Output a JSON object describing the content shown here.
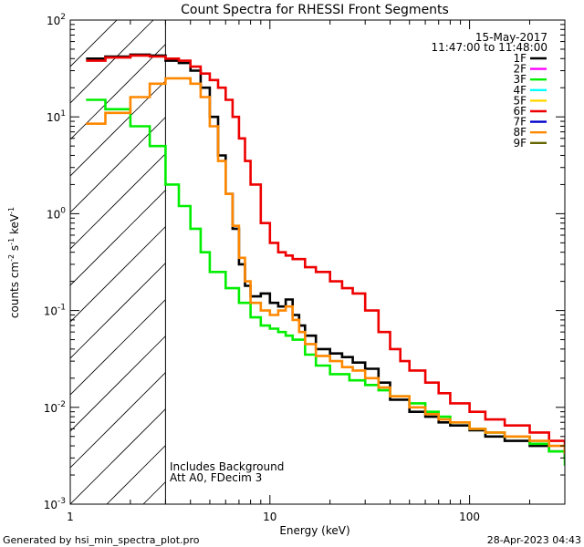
{
  "chart_data": {
    "type": "line",
    "title": "Count Spectra for RHESSI Front Segments",
    "xlabel": "Energy (keV)",
    "ylabel_parts": [
      "counts cm",
      "-2",
      " s",
      "-1",
      " keV",
      "-1"
    ],
    "x_scale": "log",
    "y_scale": "log",
    "xlim": [
      1,
      300
    ],
    "ylim": [
      0.001,
      100
    ],
    "x_ticks": [
      {
        "value": 1,
        "label": "1"
      },
      {
        "value": 10,
        "label": "10"
      },
      {
        "value": 100,
        "label": "100"
      }
    ],
    "y_ticks": [
      {
        "value": 0.001,
        "base": "10",
        "exp": "-3"
      },
      {
        "value": 0.01,
        "base": "10",
        "exp": "-2"
      },
      {
        "value": 0.1,
        "base": "10",
        "exp": "-1"
      },
      {
        "value": 1,
        "base": "10",
        "exp": "0"
      },
      {
        "value": 10,
        "base": "10",
        "exp": "1"
      },
      {
        "value": 100,
        "base": "10",
        "exp": "2"
      }
    ],
    "attenuator_boundary_keV": 3,
    "date": "15-May-2017",
    "time_range": "11:47:00 to 11:48:00",
    "annotations": [
      "Includes Background",
      "Att A0, FDecim 3"
    ],
    "legend": [
      {
        "label": "1F",
        "color": "#000000"
      },
      {
        "label": "2F",
        "color": "#ff00ff"
      },
      {
        "label": "3F",
        "color": "#00ee00"
      },
      {
        "label": "4F",
        "color": "#00ffff"
      },
      {
        "label": "5F",
        "color": "#ffd700"
      },
      {
        "label": "6F",
        "color": "#ee0000"
      },
      {
        "label": "7F",
        "color": "#0000cc"
      },
      {
        "label": "8F",
        "color": "#ff8800"
      },
      {
        "label": "9F",
        "color": "#666600"
      }
    ],
    "series": [
      {
        "name": "1F",
        "color": "#000000",
        "points": [
          [
            1.2,
            40
          ],
          [
            1.5,
            42
          ],
          [
            2,
            44
          ],
          [
            2.5,
            43
          ],
          [
            3,
            38
          ],
          [
            3.5,
            36
          ],
          [
            4,
            30
          ],
          [
            4.5,
            20
          ],
          [
            5,
            10
          ],
          [
            5.5,
            4
          ],
          [
            6,
            1.6
          ],
          [
            6.5,
            0.7
          ],
          [
            7,
            0.3
          ],
          [
            7.5,
            0.18
          ],
          [
            8,
            0.14
          ],
          [
            9,
            0.15
          ],
          [
            10,
            0.12
          ],
          [
            11,
            0.11
          ],
          [
            12,
            0.13
          ],
          [
            13,
            0.09
          ],
          [
            14,
            0.07
          ],
          [
            15,
            0.055
          ],
          [
            17,
            0.04
          ],
          [
            20,
            0.036
          ],
          [
            23,
            0.033
          ],
          [
            26,
            0.029
          ],
          [
            30,
            0.025
          ],
          [
            35,
            0.018
          ],
          [
            40,
            0.012
          ],
          [
            50,
            0.009
          ],
          [
            60,
            0.008
          ],
          [
            70,
            0.007
          ],
          [
            80,
            0.0065
          ],
          [
            100,
            0.0058
          ],
          [
            120,
            0.005
          ],
          [
            150,
            0.0045
          ],
          [
            200,
            0.004
          ],
          [
            250,
            0.0035
          ],
          [
            300,
            0.003
          ]
        ]
      },
      {
        "name": "3F",
        "color": "#00ee00",
        "points": [
          [
            1.2,
            15
          ],
          [
            1.5,
            12
          ],
          [
            2,
            8
          ],
          [
            2.5,
            5
          ],
          [
            3,
            2
          ],
          [
            3.5,
            1.2
          ],
          [
            4,
            0.7
          ],
          [
            4.5,
            0.4
          ],
          [
            5,
            0.25
          ],
          [
            6,
            0.17
          ],
          [
            7,
            0.12
          ],
          [
            8,
            0.085
          ],
          [
            9,
            0.07
          ],
          [
            10,
            0.065
          ],
          [
            11,
            0.06
          ],
          [
            12,
            0.055
          ],
          [
            13,
            0.05
          ],
          [
            15,
            0.035
          ],
          [
            17,
            0.027
          ],
          [
            20,
            0.022
          ],
          [
            25,
            0.019
          ],
          [
            30,
            0.017
          ],
          [
            35,
            0.015
          ],
          [
            40,
            0.013
          ],
          [
            50,
            0.011
          ],
          [
            60,
            0.009
          ],
          [
            70,
            0.008
          ],
          [
            80,
            0.007
          ],
          [
            100,
            0.006
          ],
          [
            120,
            0.0055
          ],
          [
            150,
            0.005
          ],
          [
            200,
            0.0042
          ],
          [
            250,
            0.0035
          ],
          [
            300,
            0.0025
          ]
        ]
      },
      {
        "name": "6F",
        "color": "#ee0000",
        "points": [
          [
            1.2,
            38
          ],
          [
            1.5,
            41
          ],
          [
            2,
            43
          ],
          [
            2.5,
            42
          ],
          [
            3,
            40
          ],
          [
            3.5,
            38
          ],
          [
            4,
            33
          ],
          [
            4.5,
            28
          ],
          [
            5,
            24
          ],
          [
            5.5,
            20
          ],
          [
            6,
            15
          ],
          [
            6.5,
            10
          ],
          [
            7,
            6
          ],
          [
            7.5,
            3.5
          ],
          [
            8,
            2
          ],
          [
            9,
            0.8
          ],
          [
            10,
            0.5
          ],
          [
            11,
            0.4
          ],
          [
            12,
            0.37
          ],
          [
            13,
            0.34
          ],
          [
            15,
            0.28
          ],
          [
            17,
            0.25
          ],
          [
            20,
            0.2
          ],
          [
            23,
            0.17
          ],
          [
            26,
            0.15
          ],
          [
            30,
            0.1
          ],
          [
            35,
            0.06
          ],
          [
            40,
            0.04
          ],
          [
            45,
            0.03
          ],
          [
            50,
            0.024
          ],
          [
            60,
            0.018
          ],
          [
            70,
            0.014
          ],
          [
            80,
            0.011
          ],
          [
            100,
            0.009
          ],
          [
            120,
            0.0075
          ],
          [
            150,
            0.0065
          ],
          [
            200,
            0.0055
          ],
          [
            250,
            0.0045
          ],
          [
            300,
            0.0035
          ]
        ]
      },
      {
        "name": "8F",
        "color": "#ff8800",
        "points": [
          [
            1.2,
            8.5
          ],
          [
            1.5,
            11
          ],
          [
            2,
            16
          ],
          [
            2.5,
            22
          ],
          [
            3,
            25
          ],
          [
            3.5,
            25
          ],
          [
            4,
            22
          ],
          [
            4.5,
            16
          ],
          [
            5,
            8
          ],
          [
            5.5,
            3.5
          ],
          [
            6,
            1.6
          ],
          [
            6.5,
            0.75
          ],
          [
            7,
            0.35
          ],
          [
            7.5,
            0.2
          ],
          [
            8,
            0.12
          ],
          [
            9,
            0.1
          ],
          [
            10,
            0.09
          ],
          [
            11,
            0.1
          ],
          [
            12,
            0.11
          ],
          [
            13,
            0.08
          ],
          [
            14,
            0.06
          ],
          [
            15,
            0.045
          ],
          [
            17,
            0.034
          ],
          [
            20,
            0.03
          ],
          [
            23,
            0.026
          ],
          [
            26,
            0.024
          ],
          [
            30,
            0.02
          ],
          [
            35,
            0.016
          ],
          [
            40,
            0.013
          ],
          [
            50,
            0.01
          ],
          [
            60,
            0.0085
          ],
          [
            70,
            0.0075
          ],
          [
            80,
            0.007
          ],
          [
            100,
            0.006
          ],
          [
            120,
            0.0055
          ],
          [
            150,
            0.005
          ],
          [
            200,
            0.0045
          ],
          [
            250,
            0.004
          ],
          [
            300,
            0.0033
          ]
        ]
      }
    ]
  },
  "footer": {
    "left": "Generated by hsi_min_spectra_plot.pro",
    "right": "28-Apr-2023 04:43"
  }
}
